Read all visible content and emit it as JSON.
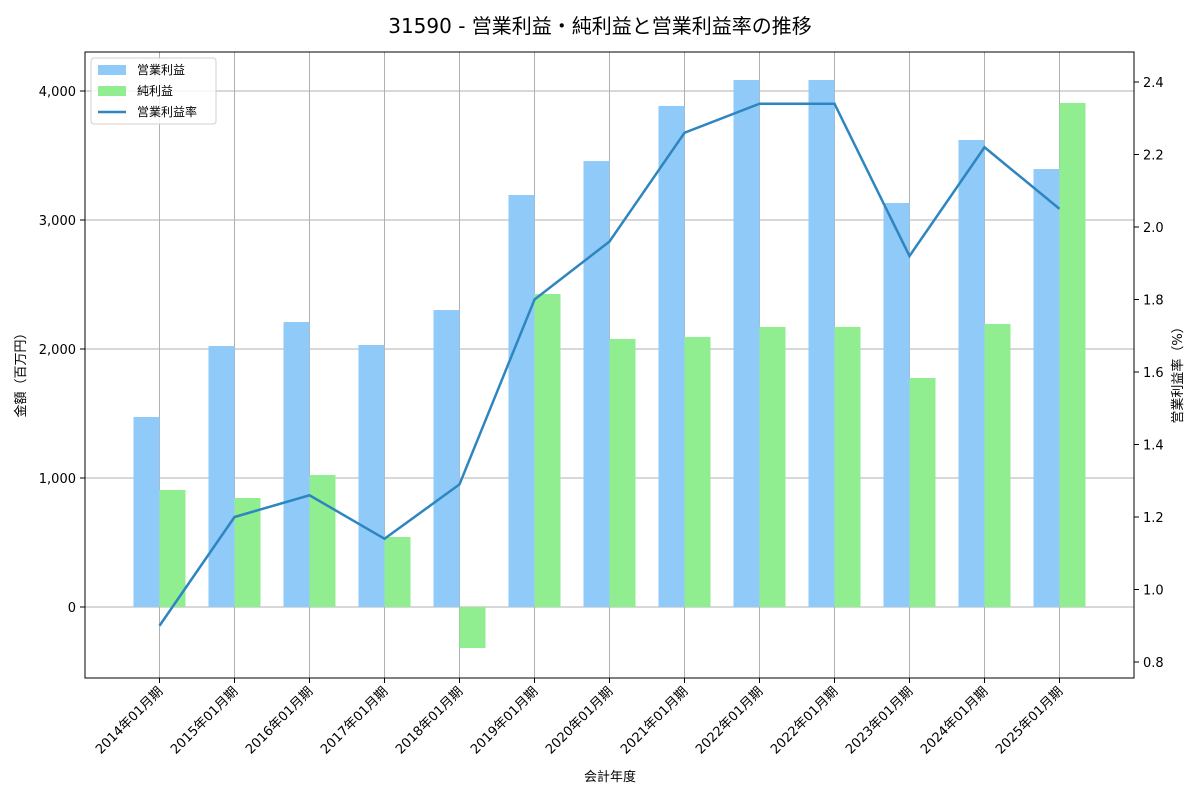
{
  "chart_data": {
    "type": "bar",
    "title": "31590 - 営業利益・純利益と営業利益率の推移",
    "xlabel": "会計年度",
    "ylabel": "金額（百万円）",
    "ylabel_right": "営業利益率（%）",
    "categories": [
      "2014年01月期",
      "2015年01月期",
      "2016年01月期",
      "2017年01月期",
      "2018年01月期",
      "2019年01月期",
      "2020年01月期",
      "2021年01月期",
      "2022年01月期",
      "2022年01月期",
      "2023年01月期",
      "2024年01月期",
      "2025年01月期"
    ],
    "series": [
      {
        "name": "営業利益",
        "type": "bar",
        "axis": "left",
        "color": "#90caf9",
        "values": [
          1473,
          2023,
          2209,
          2031,
          2302,
          3194,
          3457,
          3884,
          4085,
          4085,
          3132,
          3620,
          3395
        ]
      },
      {
        "name": "純利益",
        "type": "bar",
        "axis": "left",
        "color": "#90ee90",
        "values": [
          907,
          845,
          1023,
          543,
          -318,
          2426,
          2078,
          2093,
          2171,
          2171,
          1775,
          2194,
          3907
        ]
      },
      {
        "name": "営業利益率",
        "type": "line",
        "axis": "right",
        "color": "#2e86c1",
        "values": [
          0.9,
          1.2,
          1.26,
          1.14,
          1.29,
          1.8,
          1.96,
          2.26,
          2.34,
          2.34,
          1.92,
          2.22,
          2.05
        ]
      }
    ],
    "ylim": [
      -550,
      4300
    ],
    "yticks": [
      0,
      1000,
      2000,
      3000,
      4000
    ],
    "ytick_labels": [
      "0",
      "1,000",
      "2,000",
      "3,000",
      "4,000"
    ],
    "ylim_right": [
      0.76,
      2.48
    ],
    "yticks_right": [
      0.8,
      1.0,
      1.2,
      1.4,
      1.6,
      1.8,
      2.0,
      2.2,
      2.4
    ],
    "ytick_labels_right": [
      "0.8",
      "1.0",
      "1.2",
      "1.4",
      "1.6",
      "1.8",
      "2.0",
      "2.2",
      "2.4"
    ],
    "grid": true,
    "legend_position": "upper left"
  }
}
